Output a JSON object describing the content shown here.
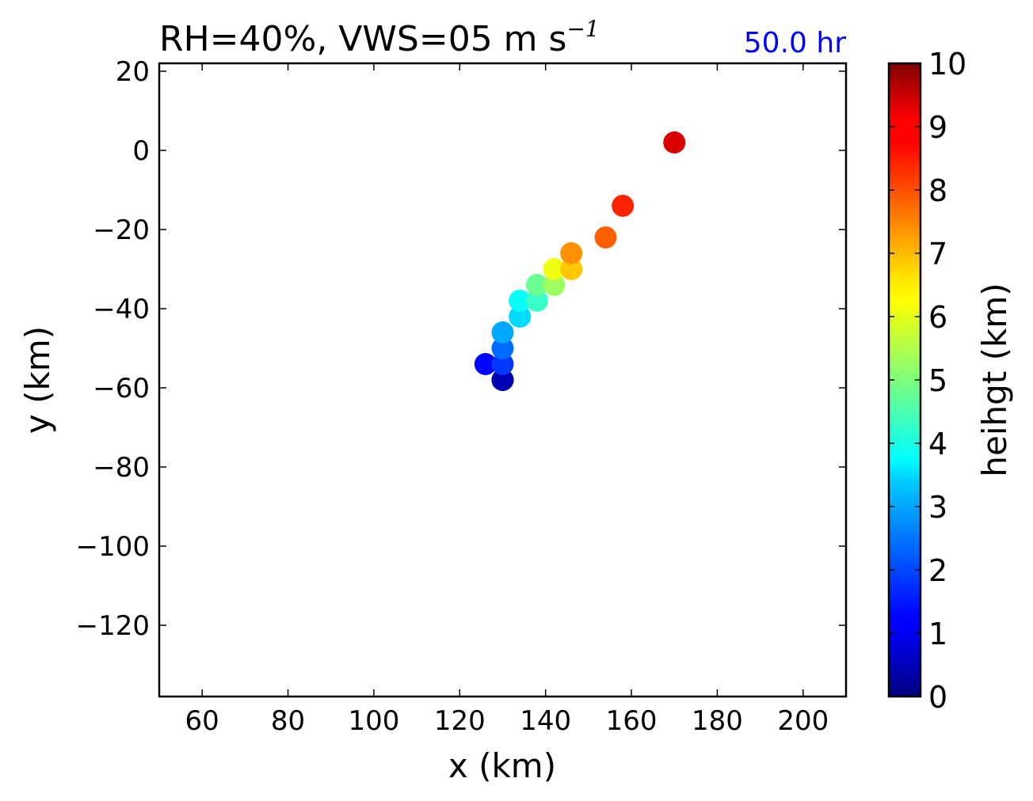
{
  "chart_data": {
    "type": "scatter",
    "title": {
      "main": "RH=40%, VWS=05 m s",
      "superscript": "−1"
    },
    "time_label": "50.0 hr",
    "time_label_color": "#0000ff",
    "xlabel": "x (km)",
    "ylabel": "y (km)",
    "xlim": [
      50,
      210
    ],
    "ylim": [
      -138,
      22
    ],
    "xticks": [
      60,
      80,
      100,
      120,
      140,
      160,
      180,
      200
    ],
    "yticks": [
      20,
      0,
      -20,
      -40,
      -60,
      -80,
      -100,
      -120
    ],
    "grid": false,
    "colormap": "jet",
    "colorbar": {
      "label": "heihgt (km)",
      "range": [
        0,
        10
      ],
      "ticks": [
        0,
        1,
        2,
        3,
        4,
        5,
        6,
        7,
        8,
        9,
        10
      ]
    },
    "points": [
      {
        "x": 130,
        "y": -58,
        "height": 0.0
      },
      {
        "x": 130,
        "y": -58,
        "height": 0.5
      },
      {
        "x": 126,
        "y": -54,
        "height": 1.3
      },
      {
        "x": 130,
        "y": -54,
        "height": 1.8
      },
      {
        "x": 130,
        "y": -50,
        "height": 2.3
      },
      {
        "x": 130,
        "y": -46,
        "height": 2.9
      },
      {
        "x": 134,
        "y": -42,
        "height": 3.4
      },
      {
        "x": 134,
        "y": -38,
        "height": 3.8
      },
      {
        "x": 138,
        "y": -38,
        "height": 4.3
      },
      {
        "x": 138,
        "y": -34,
        "height": 4.8
      },
      {
        "x": 142,
        "y": -34,
        "height": 5.3
      },
      {
        "x": 142,
        "y": -30,
        "height": 6.1
      },
      {
        "x": 146,
        "y": -30,
        "height": 6.8
      },
      {
        "x": 146,
        "y": -26,
        "height": 7.3
      },
      {
        "x": 154,
        "y": -22,
        "height": 7.8
      },
      {
        "x": 158,
        "y": -14,
        "height": 8.4
      },
      {
        "x": 170,
        "y": 2,
        "height": 9.1
      }
    ]
  }
}
